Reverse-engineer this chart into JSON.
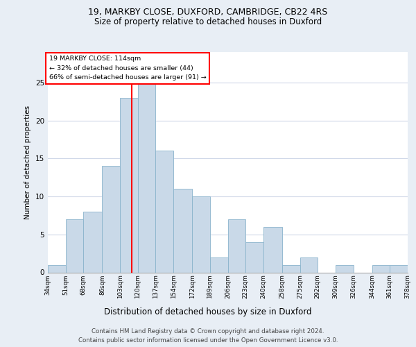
{
  "title1": "19, MARKBY CLOSE, DUXFORD, CAMBRIDGE, CB22 4RS",
  "title2": "Size of property relative to detached houses in Duxford",
  "xlabel": "Distribution of detached houses by size in Duxford",
  "ylabel": "Number of detached properties",
  "bar_values_20": [
    1,
    7,
    8,
    14,
    23,
    25,
    16,
    11,
    10,
    2,
    7,
    4,
    6,
    1,
    2,
    0,
    1,
    0,
    1,
    1
  ],
  "all_labels": [
    "34sqm",
    "51sqm",
    "68sqm",
    "86sqm",
    "103sqm",
    "120sqm",
    "137sqm",
    "154sqm",
    "172sqm",
    "189sqm",
    "206sqm",
    "223sqm",
    "240sqm",
    "258sqm",
    "275sqm",
    "292sqm",
    "309sqm",
    "326sqm",
    "344sqm",
    "361sqm",
    "378sqm"
  ],
  "bin_edges": [
    34,
    51,
    68,
    86,
    103,
    120,
    137,
    154,
    172,
    189,
    206,
    223,
    240,
    258,
    275,
    292,
    309,
    326,
    344,
    361,
    378
  ],
  "bar_color": "#c9d9e8",
  "bar_edge_color": "#8ab4cc",
  "grid_color": "#d0d8e8",
  "vline_color": "red",
  "vline_x": 114,
  "ylim": [
    0,
    29
  ],
  "yticks": [
    0,
    5,
    10,
    15,
    20,
    25
  ],
  "annotation_text_line1": "19 MARKBY CLOSE: 114sqm",
  "annotation_text_line2": "← 32% of detached houses are smaller (44)",
  "annotation_text_line3": "66% of semi-detached houses are larger (91) →",
  "footnote1": "Contains HM Land Registry data © Crown copyright and database right 2024.",
  "footnote2": "Contains public sector information licensed under the Open Government Licence v3.0.",
  "bg_color": "#e8eef5",
  "plot_bg_color": "white"
}
